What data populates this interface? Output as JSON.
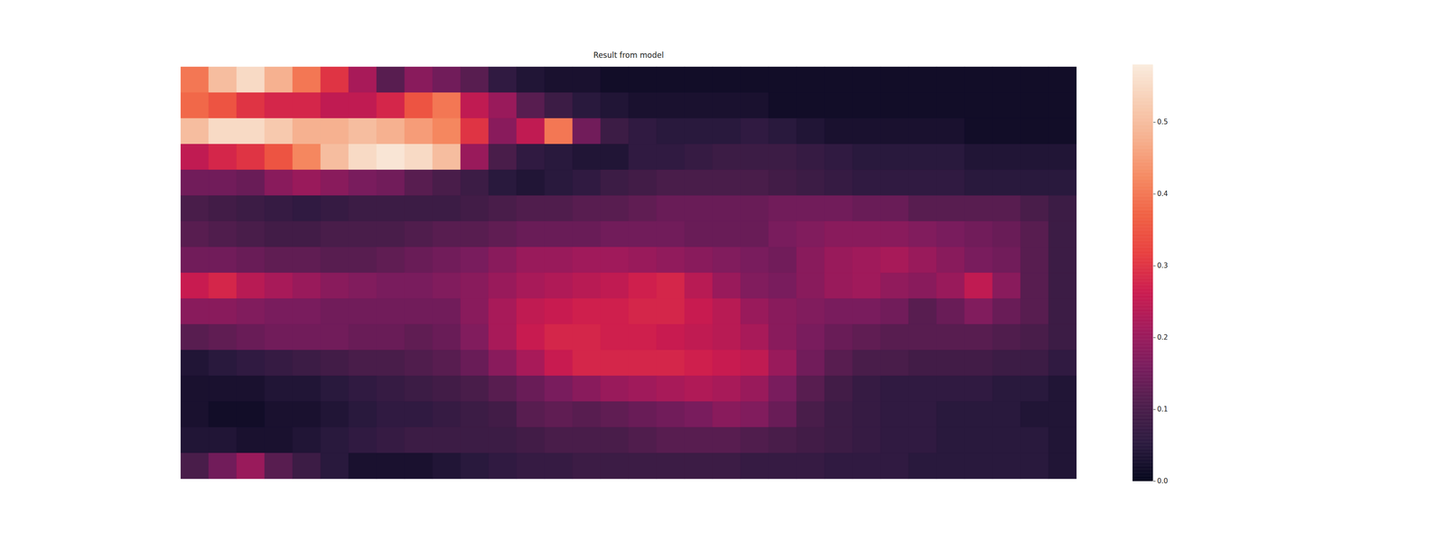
{
  "chart_data": {
    "type": "heatmap",
    "title": "Result from model",
    "tick_labels": false,
    "cells": [
      [
        0.4,
        0.5,
        0.55,
        0.48,
        0.4,
        0.3,
        0.22,
        0.12,
        0.18,
        0.15,
        0.12,
        0.06,
        0.04,
        0.03,
        0.03,
        0.02,
        0.02,
        0.02,
        0.02,
        0.02,
        0.02,
        0.02,
        0.02,
        0.02,
        0.02,
        0.02,
        0.02,
        0.02,
        0.02,
        0.02,
        0.02,
        0.02
      ],
      [
        0.38,
        0.35,
        0.3,
        0.28,
        0.28,
        0.25,
        0.25,
        0.28,
        0.35,
        0.4,
        0.25,
        0.2,
        0.12,
        0.08,
        0.05,
        0.04,
        0.03,
        0.03,
        0.03,
        0.03,
        0.03,
        0.02,
        0.02,
        0.02,
        0.02,
        0.02,
        0.02,
        0.02,
        0.02,
        0.02,
        0.02,
        0.02
      ],
      [
        0.5,
        0.55,
        0.55,
        0.52,
        0.48,
        0.48,
        0.5,
        0.48,
        0.45,
        0.42,
        0.3,
        0.18,
        0.25,
        0.4,
        0.15,
        0.08,
        0.06,
        0.05,
        0.05,
        0.05,
        0.06,
        0.05,
        0.04,
        0.03,
        0.03,
        0.03,
        0.03,
        0.03,
        0.02,
        0.02,
        0.02,
        0.02
      ],
      [
        0.25,
        0.28,
        0.3,
        0.35,
        0.42,
        0.5,
        0.55,
        0.57,
        0.55,
        0.5,
        0.2,
        0.1,
        0.06,
        0.05,
        0.04,
        0.04,
        0.06,
        0.06,
        0.07,
        0.08,
        0.08,
        0.08,
        0.07,
        0.06,
        0.05,
        0.05,
        0.05,
        0.05,
        0.04,
        0.04,
        0.04,
        0.04
      ],
      [
        0.15,
        0.15,
        0.14,
        0.18,
        0.2,
        0.18,
        0.16,
        0.15,
        0.12,
        0.1,
        0.08,
        0.05,
        0.04,
        0.05,
        0.06,
        0.08,
        0.09,
        0.1,
        0.1,
        0.1,
        0.1,
        0.09,
        0.08,
        0.07,
        0.06,
        0.06,
        0.06,
        0.06,
        0.05,
        0.05,
        0.05,
        0.05
      ],
      [
        0.1,
        0.09,
        0.08,
        0.07,
        0.06,
        0.07,
        0.08,
        0.08,
        0.08,
        0.08,
        0.09,
        0.1,
        0.11,
        0.11,
        0.12,
        0.12,
        0.13,
        0.14,
        0.14,
        0.14,
        0.14,
        0.15,
        0.15,
        0.15,
        0.14,
        0.14,
        0.12,
        0.12,
        0.12,
        0.12,
        0.1,
        0.08
      ],
      [
        0.12,
        0.11,
        0.1,
        0.09,
        0.09,
        0.1,
        0.1,
        0.1,
        0.11,
        0.12,
        0.12,
        0.13,
        0.14,
        0.14,
        0.14,
        0.15,
        0.15,
        0.15,
        0.14,
        0.14,
        0.14,
        0.16,
        0.17,
        0.18,
        0.18,
        0.18,
        0.17,
        0.16,
        0.15,
        0.14,
        0.12,
        0.08
      ],
      [
        0.15,
        0.15,
        0.14,
        0.13,
        0.13,
        0.12,
        0.12,
        0.13,
        0.14,
        0.15,
        0.16,
        0.18,
        0.2,
        0.2,
        0.21,
        0.21,
        0.2,
        0.19,
        0.18,
        0.17,
        0.16,
        0.15,
        0.18,
        0.2,
        0.21,
        0.22,
        0.2,
        0.18,
        0.16,
        0.15,
        0.12,
        0.08
      ],
      [
        0.26,
        0.28,
        0.24,
        0.22,
        0.2,
        0.18,
        0.17,
        0.16,
        0.16,
        0.17,
        0.18,
        0.2,
        0.22,
        0.23,
        0.24,
        0.25,
        0.27,
        0.28,
        0.24,
        0.2,
        0.17,
        0.16,
        0.18,
        0.2,
        0.21,
        0.19,
        0.18,
        0.2,
        0.25,
        0.18,
        0.12,
        0.08
      ],
      [
        0.18,
        0.18,
        0.17,
        0.16,
        0.16,
        0.15,
        0.15,
        0.15,
        0.15,
        0.15,
        0.18,
        0.22,
        0.25,
        0.26,
        0.27,
        0.27,
        0.28,
        0.28,
        0.26,
        0.24,
        0.2,
        0.18,
        0.17,
        0.16,
        0.16,
        0.15,
        0.12,
        0.14,
        0.17,
        0.14,
        0.12,
        0.08
      ],
      [
        0.12,
        0.13,
        0.14,
        0.15,
        0.15,
        0.15,
        0.14,
        0.14,
        0.13,
        0.14,
        0.17,
        0.22,
        0.26,
        0.28,
        0.28,
        0.27,
        0.27,
        0.26,
        0.25,
        0.24,
        0.22,
        0.18,
        0.16,
        0.14,
        0.13,
        0.12,
        0.12,
        0.12,
        0.12,
        0.11,
        0.1,
        0.08
      ],
      [
        0.04,
        0.05,
        0.06,
        0.07,
        0.08,
        0.09,
        0.1,
        0.1,
        0.11,
        0.12,
        0.14,
        0.18,
        0.22,
        0.26,
        0.28,
        0.28,
        0.28,
        0.28,
        0.27,
        0.26,
        0.25,
        0.2,
        0.15,
        0.12,
        0.1,
        0.1,
        0.09,
        0.09,
        0.09,
        0.08,
        0.08,
        0.06
      ],
      [
        0.03,
        0.03,
        0.03,
        0.04,
        0.04,
        0.05,
        0.06,
        0.07,
        0.08,
        0.09,
        0.1,
        0.12,
        0.14,
        0.16,
        0.18,
        0.2,
        0.21,
        0.22,
        0.23,
        0.22,
        0.2,
        0.16,
        0.12,
        0.09,
        0.07,
        0.06,
        0.06,
        0.06,
        0.06,
        0.05,
        0.05,
        0.04
      ],
      [
        0.03,
        0.02,
        0.02,
        0.03,
        0.03,
        0.04,
        0.05,
        0.06,
        0.06,
        0.07,
        0.08,
        0.09,
        0.12,
        0.13,
        0.12,
        0.13,
        0.14,
        0.15,
        0.16,
        0.18,
        0.17,
        0.14,
        0.1,
        0.08,
        0.07,
        0.06,
        0.06,
        0.05,
        0.05,
        0.05,
        0.04,
        0.04
      ],
      [
        0.04,
        0.04,
        0.03,
        0.03,
        0.04,
        0.05,
        0.06,
        0.07,
        0.08,
        0.08,
        0.08,
        0.08,
        0.09,
        0.1,
        0.1,
        0.1,
        0.11,
        0.12,
        0.12,
        0.12,
        0.11,
        0.1,
        0.09,
        0.08,
        0.07,
        0.06,
        0.06,
        0.05,
        0.05,
        0.05,
        0.05,
        0.04
      ],
      [
        0.1,
        0.15,
        0.2,
        0.12,
        0.08,
        0.05,
        0.03,
        0.03,
        0.03,
        0.04,
        0.05,
        0.06,
        0.07,
        0.07,
        0.08,
        0.08,
        0.08,
        0.08,
        0.08,
        0.08,
        0.07,
        0.07,
        0.07,
        0.06,
        0.06,
        0.06,
        0.05,
        0.05,
        0.05,
        0.05,
        0.05,
        0.04
      ]
    ],
    "colorbar_range": [
      0,
      0.58
    ],
    "colorbar_ticks": [
      {
        "value": 0,
        "label": "0.0"
      },
      0.1,
      0.2,
      0.3,
      0.4,
      0.5
    ]
  }
}
